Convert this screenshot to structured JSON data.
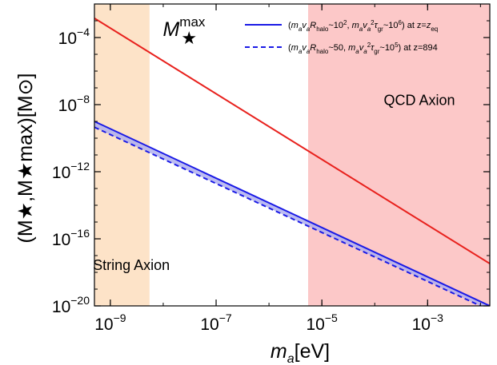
{
  "chart_data": {
    "type": "line",
    "xscale": "log",
    "yscale": "log",
    "xlim": [
      5e-10,
      0.015
    ],
    "ylim": [
      1e-20,
      0.01
    ],
    "xlabel": {
      "base": "m",
      "sub": "a",
      "unit": "[eV]"
    },
    "ylabel": "(M★,M★max)[M⊙]",
    "xticks": [
      {
        "value": 1e-09,
        "base": "10",
        "exp": "−9"
      },
      {
        "value": 1e-07,
        "base": "10",
        "exp": "−7"
      },
      {
        "value": 1e-05,
        "base": "10",
        "exp": "−5"
      },
      {
        "value": 0.001,
        "base": "10",
        "exp": "−3"
      }
    ],
    "yticks": [
      {
        "value": 0.0001,
        "base": "10",
        "exp": "−4"
      },
      {
        "value": 1e-08,
        "base": "10",
        "exp": "−8"
      },
      {
        "value": 1e-12,
        "base": "10",
        "exp": "−12"
      },
      {
        "value": 1e-16,
        "base": "10",
        "exp": "−16"
      },
      {
        "value": 1e-20,
        "base": "10",
        "exp": "−20"
      }
    ],
    "regions": [
      {
        "name": "String Axion",
        "x": [
          5e-10,
          5.5e-09
        ],
        "color": "#fde3c8"
      },
      {
        "name": "QCD Axion",
        "x": [
          5.5e-06,
          0.015
        ],
        "color": "#fcc8c8"
      }
    ],
    "series": [
      {
        "name": "M★max",
        "style": "solid",
        "color": "#e8211d",
        "x": [
          5e-10,
          0.015
        ],
        "y": [
          0.00141,
          3.31e-18
        ]
      },
      {
        "name": "(maVaRhalo~10², maVa²τgr~10⁶) at z=zeq",
        "style": "solid",
        "color": "#1a1ae6",
        "x": [
          5e-10,
          0.015
        ],
        "y": [
          1e-09,
          1e-20
        ]
      },
      {
        "name": "(maVaRhalo~50, maVa²τgr~10⁵) at z=894",
        "style": "dashed",
        "color": "#1a1ae6",
        "x": [
          5e-10,
          0.01
        ],
        "y": [
          4.5e-10,
          1e-20
        ]
      }
    ],
    "band": {
      "between": [
        1,
        2
      ],
      "color": "#b0b0ee"
    },
    "annotations": [
      {
        "id": "mstar-max",
        "base": "M",
        "sub": "★",
        "sup": "max",
        "x": 3e-08,
        "y": 0.0001
      },
      {
        "id": "qcd-axion",
        "text": "QCD Axion",
        "x": 0.0007,
        "y": 2e-08
      },
      {
        "id": "string-axion",
        "text": "String Axion",
        "x": 2.5e-09,
        "y": 3e-18
      }
    ],
    "legend": {
      "position": "top-right",
      "entries": [
        {
          "style": "solid",
          "color": "#1a1ae6",
          "parts": [
            "(",
            "m",
            "a",
            "v",
            "a",
            "R",
            "halo",
            "~10",
            "2",
            ", ",
            "m",
            "a",
            "v",
            "a",
            "2",
            "τ",
            "gr",
            "~10",
            "6",
            ") at z=",
            "z",
            "eq"
          ]
        },
        {
          "style": "dashed",
          "color": "#1a1ae6",
          "parts": [
            "(",
            "m",
            "a",
            "v",
            "a",
            "R",
            "halo",
            "~50, ",
            "m",
            "a",
            "v",
            "a",
            "2",
            "τ",
            "gr",
            "~10",
            "5",
            ") at z=894"
          ]
        }
      ]
    }
  }
}
